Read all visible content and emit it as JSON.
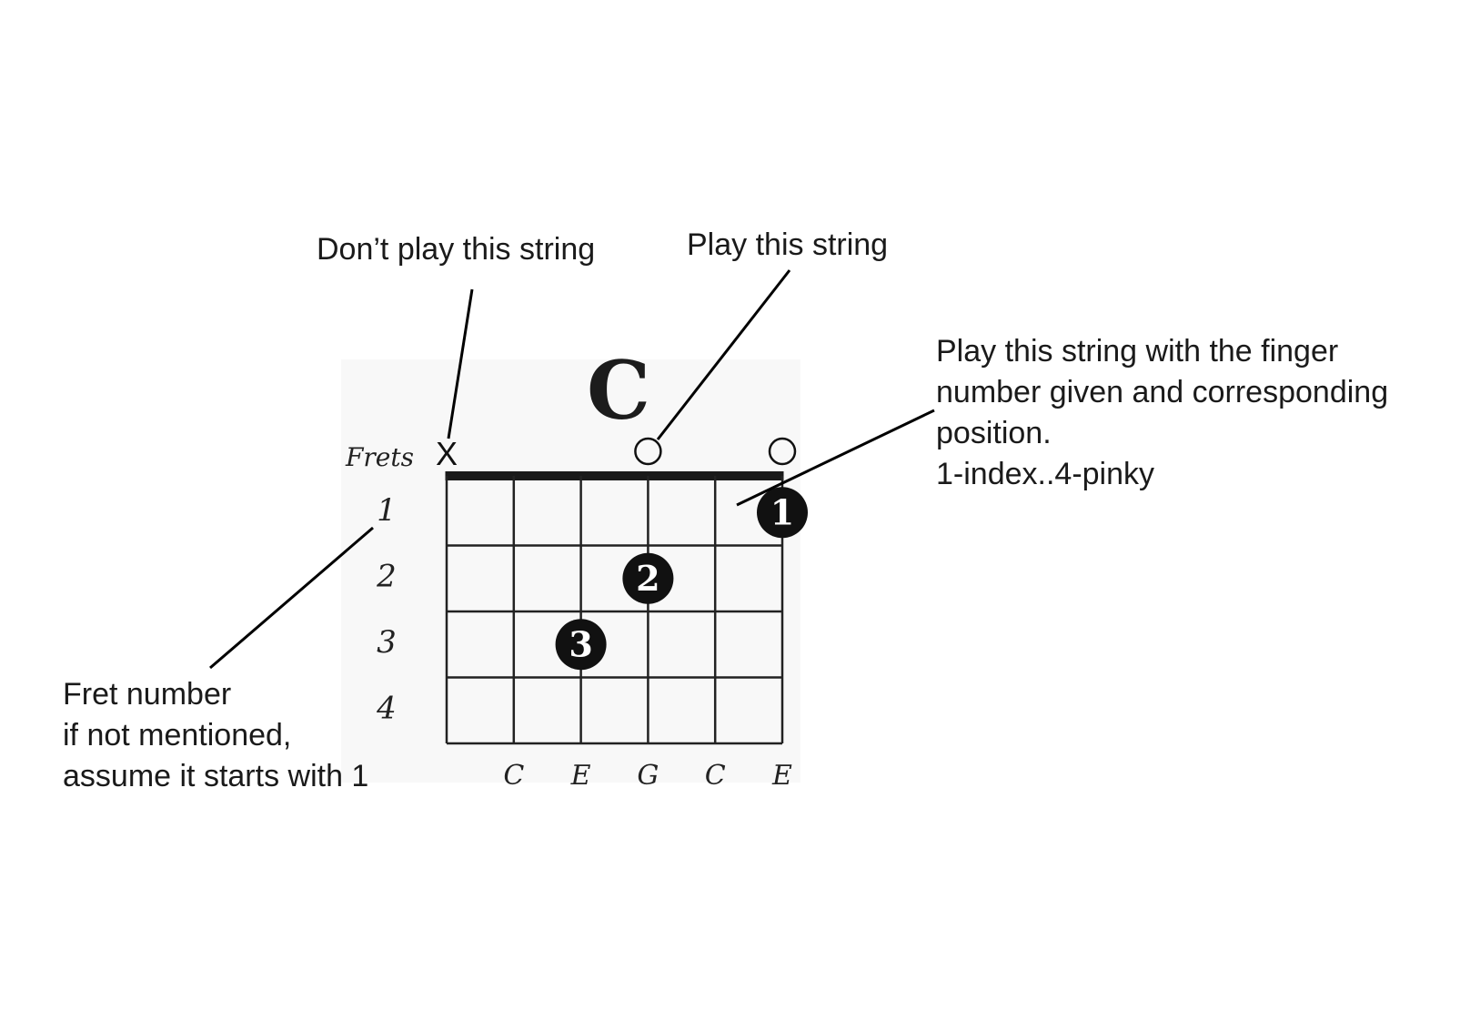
{
  "chord": {
    "name": "C",
    "frets_label": "Frets",
    "fret_numbers": [
      "1",
      "2",
      "3",
      "4"
    ],
    "string_notes": [
      "",
      "C",
      "E",
      "G",
      "C",
      "E"
    ],
    "string_markers": [
      "X",
      "",
      "",
      "O",
      "",
      "O"
    ],
    "finger_dots": [
      {
        "string": 5,
        "fret": 1,
        "finger": "1"
      },
      {
        "string": 3,
        "fret": 2,
        "finger": "2"
      },
      {
        "string": 2,
        "fret": 3,
        "finger": "3"
      }
    ]
  },
  "callouts": {
    "muted": "Don’t play this string",
    "open": "Play this string",
    "finger": {
      "lines": [
        "Play this string with the finger",
        "number given and corresponding",
        "position.",
        "1-index..4-pinky"
      ]
    },
    "fret": {
      "lines": [
        "Fret number",
        "if not mentioned,",
        "assume it starts with 1"
      ]
    }
  }
}
